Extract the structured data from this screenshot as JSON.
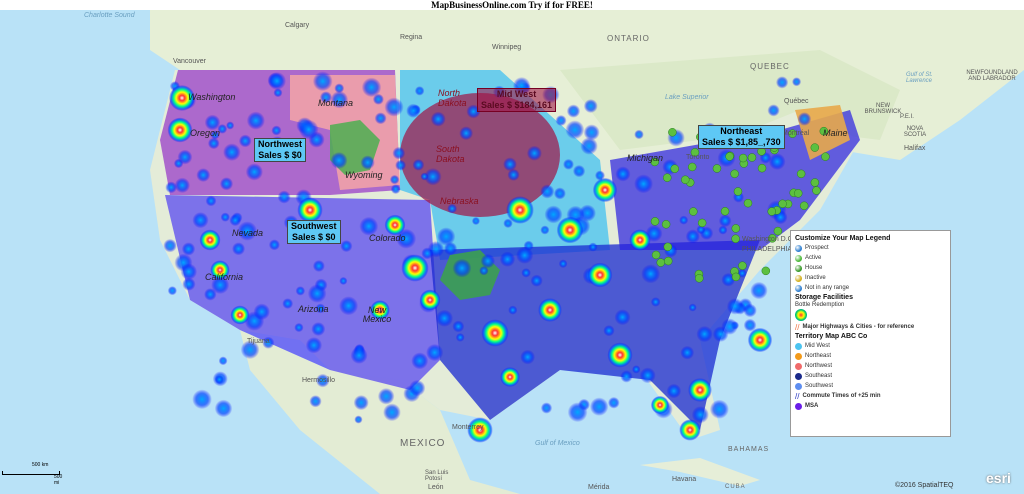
{
  "banner": "MapBusinessOnline.com Try if for FREE!",
  "places": {
    "charlotte": "Charlotte Sound",
    "calgary": "Calgary",
    "regina": "Regina",
    "winnipeg": "Winnipeg",
    "vancouver": "Vancouver",
    "ontario": "ONTARIO",
    "quebec": "QUEBEC",
    "quebec_city": "Québec",
    "montreal": "Montréal",
    "toronto": "Toronto",
    "new_brunswick": "NEW BRUNSWICK",
    "nova_scotia": "NOVA SCOTIA",
    "halifax": "Halifax",
    "pei": "P.E.I.",
    "newfoundland": "NEWFOUNDLAND AND LABRADOR",
    "gulf_st_lawrence": "Gulf of St. Lawrence",
    "lake_superior": "Lake Superior",
    "mexico": "MEXICO",
    "gulf_mexico": "Gulf of Mexico",
    "havana": "Havana",
    "cuba": "CUBA",
    "bahamas": "BAHAMAS",
    "hermosillo": "Hermosillo",
    "san_luis": "San Luis Potosí",
    "monterrey": "Monterrey",
    "tijuana": "Tijuana",
    "merida": "Mérida",
    "leon": "León",
    "washington_dc": "Washington D.C.",
    "philadelphia": "PHILADELPHIA"
  },
  "states": [
    "Washington",
    "Oregon",
    "Montana",
    "Wyoming",
    "Nevada",
    "California",
    "Colorado",
    "Arizona",
    "New Mexico",
    "North Dakota",
    "South Dakota",
    "Nebraska",
    "Michigan",
    "Maine"
  ],
  "territories": {
    "northwest": {
      "name": "Northwest",
      "sales": "Sales $ $0"
    },
    "southwest": {
      "name": "Southwest",
      "sales": "Sales $ $0"
    },
    "northeast": {
      "name": "Northeast",
      "sales": "Sales $ $1,85_,730"
    },
    "midwest": {
      "name": "Mid West",
      "sales": "Sales $ $184,161"
    }
  },
  "legend": {
    "title": "Customize Your Map Legend",
    "symbols": [
      {
        "label": "Prospect",
        "color": "#2e7fd0"
      },
      {
        "label": "Active",
        "color": "#4cb83a"
      },
      {
        "label": "House",
        "color": "#3a9a2a",
        "icon": "tree-icon"
      },
      {
        "label": "Inactive",
        "color": "#d4b020"
      },
      {
        "label": "Not in any range",
        "color": "#2e7fd0"
      }
    ],
    "storage_title": "Storage Facilities",
    "storage_sub": "Bottle Redemption",
    "highways": "Major Highways & Cities  - for reference",
    "territory_title": "Territory Map ABC Co",
    "territories": [
      {
        "label": "Mid West",
        "color": "#4cc4f0"
      },
      {
        "label": "Northeast",
        "color": "#f39a1a"
      },
      {
        "label": "Northwest",
        "color": "#f06a6a"
      },
      {
        "label": "Southeast",
        "color": "#1a2a8a"
      },
      {
        "label": "Southwest",
        "color": "#5e8ef0"
      }
    ],
    "commute": "Commute Times of +25 min",
    "msa": "MSA",
    "msa_color": "#6a1ee8"
  },
  "scale": {
    "km": "500 km",
    "mi": "500 mi"
  },
  "copyright": "©2016 SpatialTEQ",
  "esri": "esri"
}
